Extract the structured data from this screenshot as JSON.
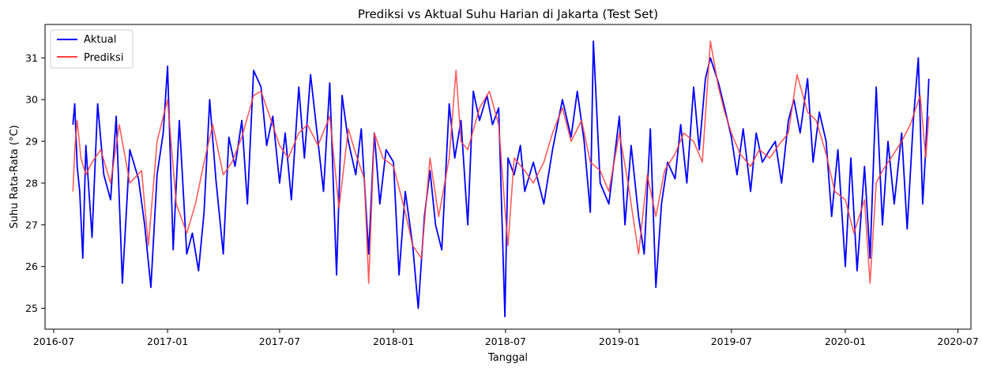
{
  "chart_data": {
    "type": "line",
    "title": "Prediksi vs Aktual Suhu Harian di Jakarta (Test Set)",
    "xlabel": "Tanggal",
    "ylabel": "Suhu Rata-Rata (°C)",
    "x_range": [
      "2016-06-17",
      "2020-07-22"
    ],
    "ylim": [
      24.5,
      31.8
    ],
    "x_ticks": [
      {
        "date": "2016-07-01",
        "label": "2016-07"
      },
      {
        "date": "2017-01-01",
        "label": "2017-01"
      },
      {
        "date": "2017-07-01",
        "label": "2017-07"
      },
      {
        "date": "2018-01-01",
        "label": "2018-01"
      },
      {
        "date": "2018-07-01",
        "label": "2018-07"
      },
      {
        "date": "2019-01-01",
        "label": "2019-01"
      },
      {
        "date": "2019-07-01",
        "label": "2019-07"
      },
      {
        "date": "2020-01-01",
        "label": "2020-01"
      },
      {
        "date": "2020-07-01",
        "label": "2020-07"
      }
    ],
    "y_ticks": [
      25,
      26,
      27,
      28,
      29,
      30,
      31
    ],
    "grid": false,
    "legend_position": "top-left",
    "series": [
      {
        "name": "Aktual",
        "color": "#0000ff",
        "points": [
          [
            "2016-08-01",
            29.4
          ],
          [
            "2016-08-04",
            29.9
          ],
          [
            "2016-08-08",
            28.4
          ],
          [
            "2016-08-12",
            27.8
          ],
          [
            "2016-08-17",
            26.2
          ],
          [
            "2016-08-22",
            28.9
          ],
          [
            "2016-09-01",
            26.7
          ],
          [
            "2016-09-10",
            29.9
          ],
          [
            "2016-09-20",
            28.2
          ],
          [
            "2016-10-01",
            27.6
          ],
          [
            "2016-10-10",
            29.6
          ],
          [
            "2016-10-20",
            25.6
          ],
          [
            "2016-11-01",
            28.8
          ],
          [
            "2016-11-15",
            28.1
          ],
          [
            "2016-11-25",
            27.0
          ],
          [
            "2016-12-05",
            25.5
          ],
          [
            "2016-12-15",
            28.2
          ],
          [
            "2016-12-25",
            29.2
          ],
          [
            "2017-01-01",
            30.8
          ],
          [
            "2017-01-10",
            26.4
          ],
          [
            "2017-01-20",
            29.5
          ],
          [
            "2017-02-01",
            26.3
          ],
          [
            "2017-02-10",
            26.8
          ],
          [
            "2017-02-20",
            25.9
          ],
          [
            "2017-03-01",
            27.3
          ],
          [
            "2017-03-10",
            30.0
          ],
          [
            "2017-03-20",
            28.1
          ],
          [
            "2017-04-01",
            26.3
          ],
          [
            "2017-04-10",
            29.1
          ],
          [
            "2017-04-20",
            28.4
          ],
          [
            "2017-05-01",
            29.5
          ],
          [
            "2017-05-10",
            27.5
          ],
          [
            "2017-05-20",
            30.7
          ],
          [
            "2017-06-01",
            30.3
          ],
          [
            "2017-06-10",
            28.9
          ],
          [
            "2017-06-20",
            29.6
          ],
          [
            "2017-07-01",
            28.0
          ],
          [
            "2017-07-10",
            29.2
          ],
          [
            "2017-07-20",
            27.6
          ],
          [
            "2017-08-01",
            30.3
          ],
          [
            "2017-08-10",
            28.6
          ],
          [
            "2017-08-20",
            30.6
          ],
          [
            "2017-09-01",
            29.0
          ],
          [
            "2017-09-10",
            27.8
          ],
          [
            "2017-09-20",
            30.4
          ],
          [
            "2017-10-01",
            25.8
          ],
          [
            "2017-10-10",
            30.1
          ],
          [
            "2017-10-20",
            29.0
          ],
          [
            "2017-11-01",
            28.2
          ],
          [
            "2017-11-10",
            29.3
          ],
          [
            "2017-11-22",
            26.3
          ],
          [
            "2017-12-01",
            29.2
          ],
          [
            "2017-12-10",
            27.5
          ],
          [
            "2017-12-20",
            28.8
          ],
          [
            "2018-01-01",
            28.5
          ],
          [
            "2018-01-10",
            25.8
          ],
          [
            "2018-01-20",
            27.8
          ],
          [
            "2018-02-01",
            26.5
          ],
          [
            "2018-02-10",
            25.0
          ],
          [
            "2018-02-20",
            27.2
          ],
          [
            "2018-03-01",
            28.3
          ],
          [
            "2018-03-10",
            27.0
          ],
          [
            "2018-03-20",
            26.4
          ],
          [
            "2018-04-01",
            29.9
          ],
          [
            "2018-04-10",
            28.6
          ],
          [
            "2018-04-20",
            29.5
          ],
          [
            "2018-05-01",
            27.0
          ],
          [
            "2018-05-10",
            30.2
          ],
          [
            "2018-05-20",
            29.5
          ],
          [
            "2018-06-01",
            30.1
          ],
          [
            "2018-06-10",
            29.4
          ],
          [
            "2018-06-20",
            29.8
          ],
          [
            "2018-06-30",
            24.8
          ],
          [
            "2018-07-05",
            28.6
          ],
          [
            "2018-07-15",
            28.2
          ],
          [
            "2018-07-25",
            28.9
          ],
          [
            "2018-08-01",
            27.8
          ],
          [
            "2018-08-15",
            28.5
          ],
          [
            "2018-09-01",
            27.5
          ],
          [
            "2018-09-15",
            28.8
          ],
          [
            "2018-10-01",
            30.0
          ],
          [
            "2018-10-15",
            29.1
          ],
          [
            "2018-10-25",
            30.2
          ],
          [
            "2018-11-05",
            29.0
          ],
          [
            "2018-11-15",
            27.3
          ],
          [
            "2018-11-20",
            31.4
          ],
          [
            "2018-12-01",
            28.0
          ],
          [
            "2018-12-15",
            27.5
          ],
          [
            "2019-01-01",
            29.6
          ],
          [
            "2019-01-10",
            27.0
          ],
          [
            "2019-01-20",
            28.9
          ],
          [
            "2019-02-01",
            27.2
          ],
          [
            "2019-02-10",
            26.3
          ],
          [
            "2019-02-20",
            29.3
          ],
          [
            "2019-03-01",
            25.5
          ],
          [
            "2019-03-10",
            27.5
          ],
          [
            "2019-03-20",
            28.5
          ],
          [
            "2019-04-01",
            28.1
          ],
          [
            "2019-04-10",
            29.4
          ],
          [
            "2019-04-20",
            28.0
          ],
          [
            "2019-05-01",
            30.3
          ],
          [
            "2019-05-10",
            28.8
          ],
          [
            "2019-05-20",
            30.5
          ],
          [
            "2019-05-28",
            31.0
          ],
          [
            "2019-06-10",
            30.4
          ],
          [
            "2019-06-20",
            29.8
          ],
          [
            "2019-07-01",
            29.1
          ],
          [
            "2019-07-10",
            28.2
          ],
          [
            "2019-07-20",
            29.3
          ],
          [
            "2019-08-01",
            27.8
          ],
          [
            "2019-08-10",
            29.2
          ],
          [
            "2019-08-20",
            28.5
          ],
          [
            "2019-09-01",
            28.8
          ],
          [
            "2019-09-10",
            29.0
          ],
          [
            "2019-09-20",
            28.0
          ],
          [
            "2019-10-01",
            29.5
          ],
          [
            "2019-10-10",
            30.0
          ],
          [
            "2019-10-20",
            29.2
          ],
          [
            "2019-11-01",
            30.5
          ],
          [
            "2019-11-10",
            28.5
          ],
          [
            "2019-11-20",
            29.7
          ],
          [
            "2019-12-01",
            29.0
          ],
          [
            "2019-12-10",
            27.2
          ],
          [
            "2019-12-20",
            28.8
          ],
          [
            "2020-01-01",
            26.0
          ],
          [
            "2020-01-10",
            28.6
          ],
          [
            "2020-01-20",
            25.9
          ],
          [
            "2020-02-01",
            28.4
          ],
          [
            "2020-02-10",
            26.2
          ],
          [
            "2020-02-20",
            30.3
          ],
          [
            "2020-03-01",
            27.0
          ],
          [
            "2020-03-10",
            29.0
          ],
          [
            "2020-03-20",
            27.5
          ],
          [
            "2020-04-01",
            29.2
          ],
          [
            "2020-04-10",
            26.9
          ],
          [
            "2020-04-20",
            29.5
          ],
          [
            "2020-04-28",
            31.0
          ],
          [
            "2020-05-05",
            27.5
          ],
          [
            "2020-05-10",
            28.8
          ],
          [
            "2020-05-15",
            30.5
          ]
        ]
      },
      {
        "name": "Prediksi",
        "color": "#ff4040",
        "points": [
          [
            "2016-08-01",
            27.8
          ],
          [
            "2016-08-04",
            28.8
          ],
          [
            "2016-08-08",
            29.5
          ],
          [
            "2016-08-14",
            28.6
          ],
          [
            "2016-08-22",
            28.2
          ],
          [
            "2016-09-01",
            28.5
          ],
          [
            "2016-09-15",
            28.8
          ],
          [
            "2016-10-01",
            28.0
          ],
          [
            "2016-10-15",
            29.4
          ],
          [
            "2016-11-01",
            28.0
          ],
          [
            "2016-11-20",
            28.3
          ],
          [
            "2016-12-01",
            26.5
          ],
          [
            "2016-12-15",
            29.0
          ],
          [
            "2017-01-01",
            30.0
          ],
          [
            "2017-01-15",
            27.5
          ],
          [
            "2017-02-01",
            26.8
          ],
          [
            "2017-02-15",
            27.5
          ],
          [
            "2017-03-01",
            28.5
          ],
          [
            "2017-03-15",
            29.4
          ],
          [
            "2017-04-01",
            28.2
          ],
          [
            "2017-04-15",
            28.5
          ],
          [
            "2017-05-01",
            29.1
          ],
          [
            "2017-05-20",
            30.1
          ],
          [
            "2017-06-01",
            30.2
          ],
          [
            "2017-06-15",
            29.6
          ],
          [
            "2017-07-01",
            28.9
          ],
          [
            "2017-07-15",
            28.6
          ],
          [
            "2017-08-01",
            29.2
          ],
          [
            "2017-08-15",
            29.4
          ],
          [
            "2017-09-01",
            28.9
          ],
          [
            "2017-09-20",
            29.6
          ],
          [
            "2017-10-05",
            27.4
          ],
          [
            "2017-10-20",
            29.3
          ],
          [
            "2017-11-01",
            28.7
          ],
          [
            "2017-11-15",
            28.1
          ],
          [
            "2017-11-22",
            25.6
          ],
          [
            "2017-12-01",
            29.2
          ],
          [
            "2017-12-15",
            28.6
          ],
          [
            "2018-01-01",
            28.4
          ],
          [
            "2018-01-20",
            27.3
          ],
          [
            "2018-02-01",
            26.5
          ],
          [
            "2018-02-15",
            26.2
          ],
          [
            "2018-03-01",
            28.6
          ],
          [
            "2018-03-15",
            27.2
          ],
          [
            "2018-04-01",
            28.6
          ],
          [
            "2018-04-12",
            30.7
          ],
          [
            "2018-04-20",
            29.0
          ],
          [
            "2018-05-01",
            28.8
          ],
          [
            "2018-05-20",
            29.8
          ],
          [
            "2018-06-05",
            30.2
          ],
          [
            "2018-06-20",
            29.4
          ],
          [
            "2018-07-01",
            27.2
          ],
          [
            "2018-07-05",
            26.5
          ],
          [
            "2018-07-15",
            28.6
          ],
          [
            "2018-08-01",
            28.3
          ],
          [
            "2018-08-15",
            28.0
          ],
          [
            "2018-09-01",
            28.5
          ],
          [
            "2018-09-15",
            29.2
          ],
          [
            "2018-10-01",
            29.8
          ],
          [
            "2018-10-15",
            29.0
          ],
          [
            "2018-11-01",
            29.5
          ],
          [
            "2018-11-15",
            28.5
          ],
          [
            "2018-12-01",
            28.3
          ],
          [
            "2018-12-15",
            27.8
          ],
          [
            "2019-01-01",
            29.2
          ],
          [
            "2019-01-15",
            28.0
          ],
          [
            "2019-02-01",
            26.3
          ],
          [
            "2019-02-15",
            28.2
          ],
          [
            "2019-03-01",
            27.2
          ],
          [
            "2019-03-15",
            28.3
          ],
          [
            "2019-04-01",
            28.7
          ],
          [
            "2019-04-15",
            29.2
          ],
          [
            "2019-05-01",
            29.0
          ],
          [
            "2019-05-15",
            28.5
          ],
          [
            "2019-05-28",
            31.4
          ],
          [
            "2019-06-10",
            30.3
          ],
          [
            "2019-06-20",
            29.7
          ],
          [
            "2019-07-01",
            29.2
          ],
          [
            "2019-07-15",
            28.7
          ],
          [
            "2019-08-01",
            28.4
          ],
          [
            "2019-08-15",
            28.8
          ],
          [
            "2019-09-01",
            28.6
          ],
          [
            "2019-09-15",
            28.9
          ],
          [
            "2019-10-01",
            29.2
          ],
          [
            "2019-10-15",
            30.6
          ],
          [
            "2019-11-01",
            29.7
          ],
          [
            "2019-11-15",
            29.5
          ],
          [
            "2019-12-01",
            28.7
          ],
          [
            "2019-12-15",
            27.8
          ],
          [
            "2020-01-01",
            27.6
          ],
          [
            "2020-01-15",
            26.8
          ],
          [
            "2020-02-01",
            27.6
          ],
          [
            "2020-02-10",
            25.6
          ],
          [
            "2020-02-20",
            28.0
          ],
          [
            "2020-03-01",
            28.3
          ],
          [
            "2020-03-15",
            28.6
          ],
          [
            "2020-04-01",
            29.0
          ],
          [
            "2020-04-15",
            29.4
          ],
          [
            "2020-05-01",
            30.1
          ],
          [
            "2020-05-10",
            28.6
          ],
          [
            "2020-05-15",
            29.6
          ]
        ]
      }
    ]
  }
}
